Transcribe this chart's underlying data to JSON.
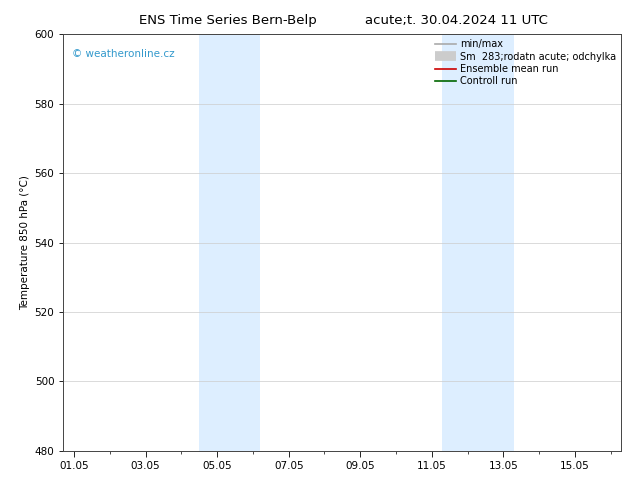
{
  "title_left": "ENS Time Series Bern-Belp",
  "title_right": "acute;t. 30.04.2024 11 UTC",
  "ylabel": "Temperature 850 hPa (°C)",
  "ylim": [
    480,
    600
  ],
  "yticks": [
    480,
    500,
    520,
    540,
    560,
    580,
    600
  ],
  "xtick_labels": [
    "01.05",
    "03.05",
    "05.05",
    "07.05",
    "09.05",
    "11.05",
    "13.05",
    "15.05"
  ],
  "xtick_positions": [
    0,
    2,
    4,
    6,
    8,
    10,
    12,
    14
  ],
  "xlim": [
    -0.3,
    15.3
  ],
  "background_color": "#ffffff",
  "shaded_bands": [
    {
      "x_start": 3.5,
      "x_end": 5.2,
      "color": "#ddeeff"
    },
    {
      "x_start": 10.3,
      "x_end": 12.3,
      "color": "#ddeeff"
    }
  ],
  "watermark": "© weatheronline.cz",
  "watermark_color": "#3399cc",
  "legend_entries": [
    {
      "label": "min/max",
      "color": "#aaaaaa",
      "lw": 1.2
    },
    {
      "label": "Sm  283;rodatn acute; odchylka",
      "color": "#cccccc",
      "lw": 7
    },
    {
      "label": "Ensemble mean run",
      "color": "#cc0000",
      "lw": 1.2
    },
    {
      "label": "Controll run",
      "color": "#006600",
      "lw": 1.2
    }
  ],
  "grid_color": "#cccccc",
  "title_fontsize": 9.5,
  "tick_label_fontsize": 7.5,
  "ylabel_fontsize": 7.5,
  "legend_fontsize": 7.0,
  "watermark_fontsize": 7.5
}
